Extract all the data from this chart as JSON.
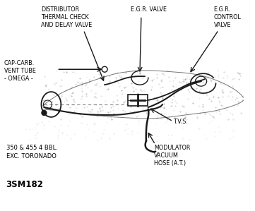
{
  "background_color": "#ffffff",
  "fig_width": 3.61,
  "fig_height": 2.99,
  "dpi": 100,
  "labels": {
    "distributor": "DISTRIBUTOR\nTHERMAL CHECK\nAND DELAY VALVE",
    "egr_valve": "E.G.R. VALVE",
    "egr_control": "E.G.R.\nCONTROL\nVALVE",
    "cap_carb": "CAP-CARB.\nVENT TUBE\n- OMEGA -",
    "tvs": "T.V.S.",
    "modulator": "MODULATOR\nVACUUM\nHOSE (A.T.)",
    "spec": "350 & 455 4 BBL.\nEXC. TORONADO",
    "part_num": "3SM182"
  },
  "text_color": "#000000",
  "line_color": "#1a1a1a",
  "font_size_labels": 5.8,
  "font_size_spec": 6.0,
  "font_size_partnum": 8.5
}
